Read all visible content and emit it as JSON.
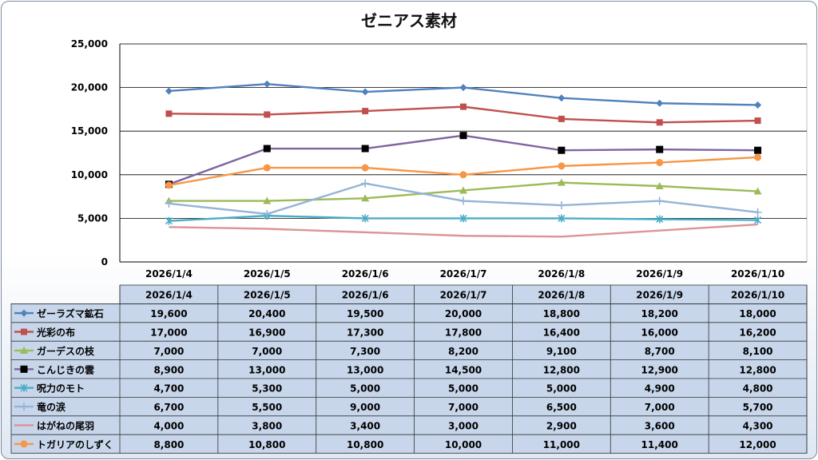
{
  "chart_data": {
    "type": "line",
    "title": "ゼニアス素材",
    "categories": [
      "2026/1/4",
      "2026/1/5",
      "2026/1/6",
      "2026/1/7",
      "2026/1/8",
      "2026/1/9",
      "2026/1/10"
    ],
    "ylim": [
      0,
      25000
    ],
    "yticks": [
      "0",
      "5,000",
      "10,000",
      "15,000",
      "20,000",
      "25,000"
    ],
    "grid": true,
    "legend": "data-table",
    "series": [
      {
        "name": "ゼーラズマ鉱石",
        "color": "#4f81bd",
        "marker": "diamond",
        "values": [
          19600,
          20400,
          19500,
          20000,
          18800,
          18200,
          18000
        ],
        "labels": [
          "19,600",
          "20,400",
          "19,500",
          "20,000",
          "18,800",
          "18,200",
          "18,000"
        ]
      },
      {
        "name": "光彩の布",
        "color": "#c0504d",
        "marker": "square",
        "values": [
          17000,
          16900,
          17300,
          17800,
          16400,
          16000,
          16200
        ],
        "labels": [
          "17,000",
          "16,900",
          "17,300",
          "17,800",
          "16,400",
          "16,000",
          "16,200"
        ]
      },
      {
        "name": "ガーデスの枝",
        "color": "#9bbb59",
        "marker": "triangle",
        "values": [
          7000,
          7000,
          7300,
          8200,
          9100,
          8700,
          8100
        ],
        "labels": [
          "7,000",
          "7,000",
          "7,300",
          "8,200",
          "9,100",
          "8,700",
          "8,100"
        ]
      },
      {
        "name": "こんじきの雲",
        "color": "#8064a2",
        "marker": "blacksquare",
        "values": [
          8900,
          13000,
          13000,
          14500,
          12800,
          12900,
          12800
        ],
        "labels": [
          "8,900",
          "13,000",
          "13,000",
          "14,500",
          "12,800",
          "12,900",
          "12,800"
        ]
      },
      {
        "name": "呪力のモト",
        "color": "#4bacc6",
        "marker": "star",
        "values": [
          4700,
          5300,
          5000,
          5000,
          5000,
          4900,
          4800
        ],
        "labels": [
          "4,700",
          "5,300",
          "5,000",
          "5,000",
          "5,000",
          "4,900",
          "4,800"
        ]
      },
      {
        "name": "竜の涙",
        "color": "#95b3d7",
        "marker": "plus",
        "values": [
          6700,
          5500,
          9000,
          7000,
          6500,
          7000,
          5700
        ],
        "labels": [
          "6,700",
          "5,500",
          "9,000",
          "7,000",
          "6,500",
          "7,000",
          "5,700"
        ]
      },
      {
        "name": "はがねの尾羽",
        "color": "#d99694",
        "marker": "none",
        "values": [
          4000,
          3800,
          3400,
          3000,
          2900,
          3600,
          4300
        ],
        "labels": [
          "4,000",
          "3,800",
          "3,400",
          "3,000",
          "2,900",
          "3,600",
          "4,300"
        ]
      },
      {
        "name": "トガリアのしずく",
        "color": "#f79646",
        "marker": "circle",
        "values": [
          8800,
          10800,
          10800,
          10000,
          11000,
          11400,
          12000
        ],
        "labels": [
          "8,800",
          "10,800",
          "10,800",
          "10,000",
          "11,000",
          "11,400",
          "12,000"
        ]
      }
    ]
  }
}
